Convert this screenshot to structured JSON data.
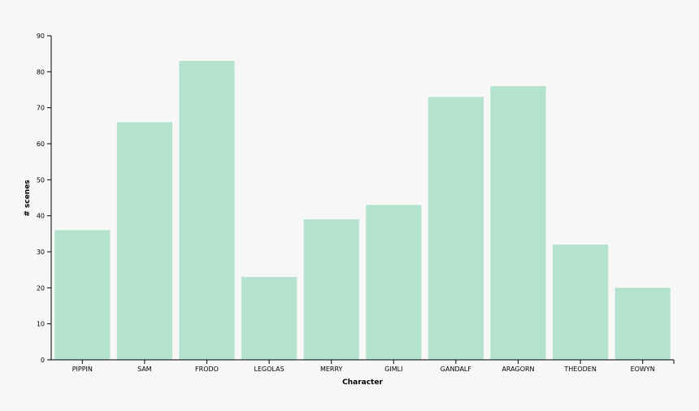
{
  "chart_data": {
    "type": "bar",
    "x_label": "Character",
    "y_label": "# scenes",
    "categories": [
      "PIPPIN",
      "SAM",
      "FRODO",
      "LEGOLAS",
      "MERRY",
      "GIMLI",
      "GANDALF",
      "ARAGORN",
      "THEODEN",
      "EOWYN"
    ],
    "values": [
      36,
      66,
      83,
      23,
      39,
      43,
      73,
      76,
      32,
      20
    ],
    "color": "#b3e2cd",
    "ylim": [
      0,
      90
    ],
    "yticks": [
      0,
      10,
      20,
      30,
      40,
      50,
      60,
      70,
      80,
      90
    ],
    "grid": false
  }
}
